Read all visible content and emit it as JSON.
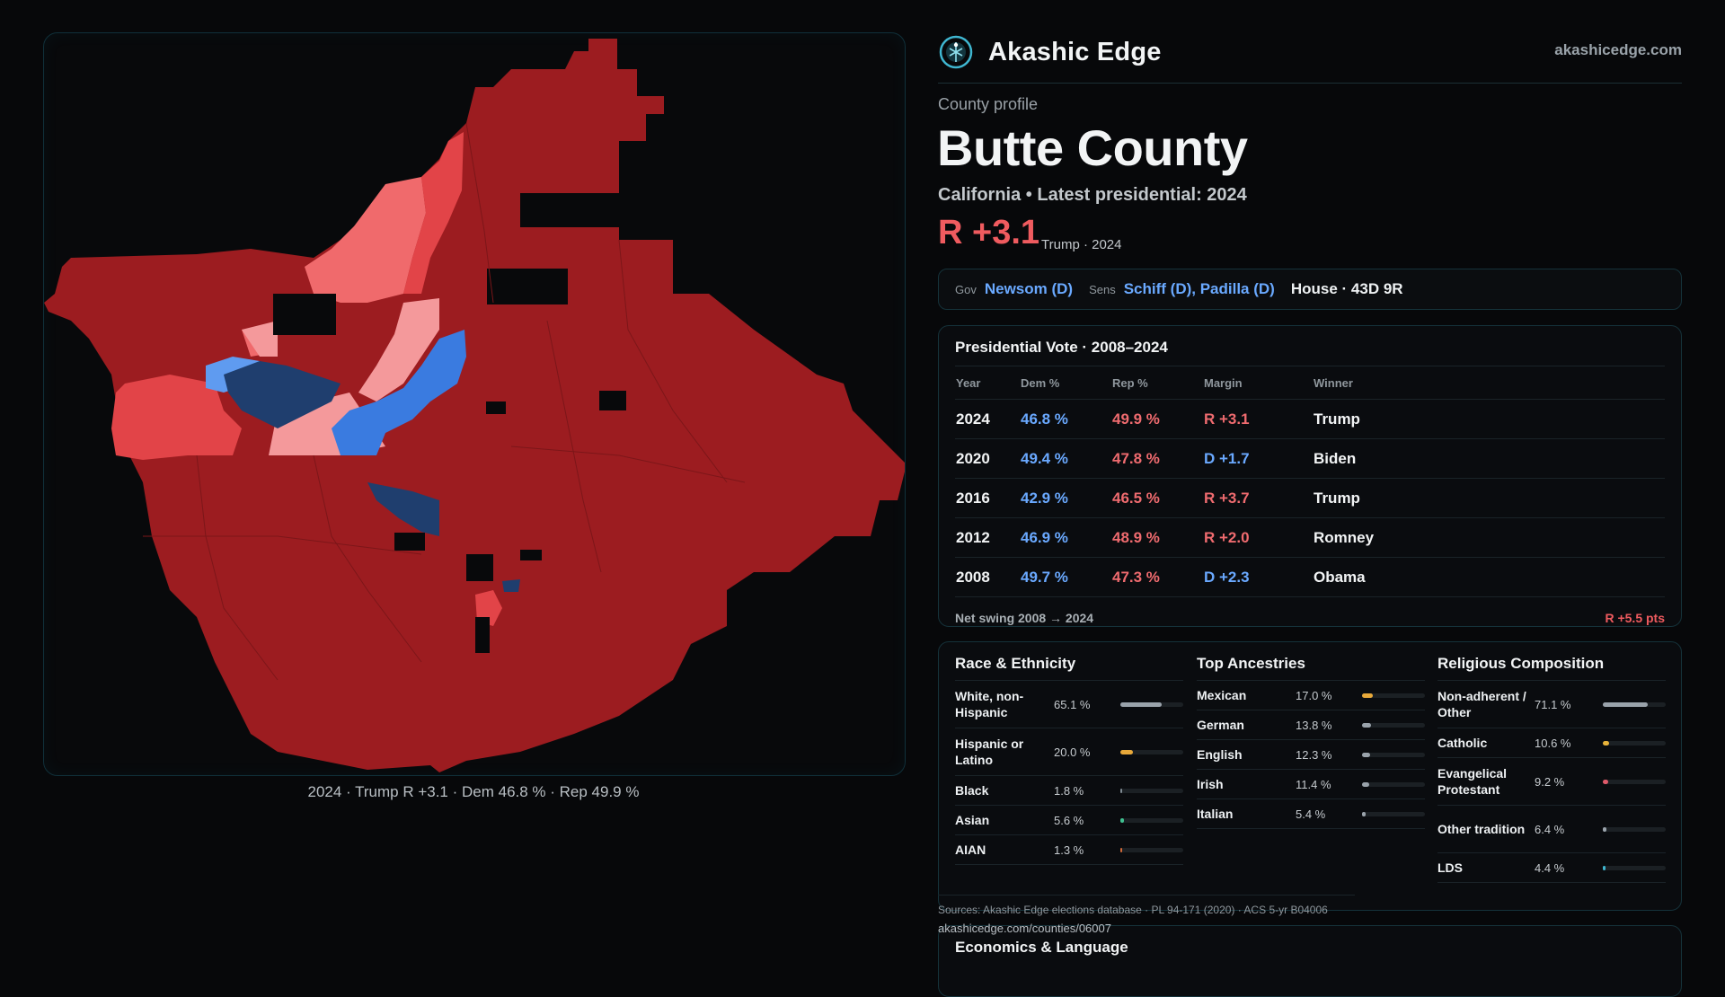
{
  "brand": {
    "name": "Akashic Edge",
    "site": "akashicedge.com",
    "logo_icon": "akashic-edge-logo-icon"
  },
  "profile": {
    "eyebrow": "County profile",
    "title": "Butte County",
    "subtitle": "California • Latest presidential: 2024",
    "margin": "R +3.1",
    "margin_note": "Trump · 2024"
  },
  "officials": {
    "gov_label": "Gov",
    "gov": "Newsom (D)",
    "sens_label": "Sens",
    "sens": "Schiff (D), Padilla (D)",
    "house": "House · 43D 9R"
  },
  "presidential": {
    "title": "Presidential Vote · 2008–2024",
    "headers": [
      "Year",
      "Dem %",
      "Rep %",
      "Margin",
      "Winner"
    ],
    "rows": [
      {
        "year": "2024",
        "dem": "46.8 %",
        "rep": "49.9 %",
        "margin": "R +3.1",
        "winner": "Trump"
      },
      {
        "year": "2020",
        "dem": "49.4 %",
        "rep": "47.8 %",
        "margin": "D +1.7",
        "winner": "Biden"
      },
      {
        "year": "2016",
        "dem": "42.9 %",
        "rep": "46.5 %",
        "margin": "R +3.7",
        "winner": "Trump"
      },
      {
        "year": "2012",
        "dem": "46.9 %",
        "rep": "48.9 %",
        "margin": "R +2.0",
        "winner": "Romney"
      },
      {
        "year": "2008",
        "dem": "49.7 %",
        "rep": "47.3 %",
        "margin": "D +2.3",
        "winner": "Obama"
      }
    ],
    "swing_label": "Net swing 2008 → 2024",
    "swing_value": "R +5.5 pts"
  },
  "race": {
    "title": "Race & Ethnicity",
    "color": "#9aa3ab",
    "rows": [
      {
        "label": "White, non-Hispanic",
        "pct": "65.1 %",
        "share": 0.651,
        "color": "#9aa3ab"
      },
      {
        "label": "Hispanic or Latino",
        "pct": "20.0 %",
        "share": 0.2,
        "color": "#e8a93a"
      },
      {
        "label": "Black",
        "pct": "1.8 %",
        "share": 0.018,
        "color": "#7f8a92"
      },
      {
        "label": "Asian",
        "pct": "5.6 %",
        "share": 0.056,
        "color": "#3fbf8f"
      },
      {
        "label": "AIAN",
        "pct": "1.3 %",
        "share": 0.013,
        "color": "#d06a3a"
      }
    ]
  },
  "ancestry": {
    "title": "Top Ancestries",
    "rows": [
      {
        "label": "Mexican",
        "pct": "17.0 %",
        "share": 0.17,
        "color": "#e8a93a"
      },
      {
        "label": "German",
        "pct": "13.8 %",
        "share": 0.138,
        "color": "#9aa3ab"
      },
      {
        "label": "English",
        "pct": "12.3 %",
        "share": 0.123,
        "color": "#9aa3ab"
      },
      {
        "label": "Irish",
        "pct": "11.4 %",
        "share": 0.114,
        "color": "#9aa3ab"
      },
      {
        "label": "Italian",
        "pct": "5.4 %",
        "share": 0.054,
        "color": "#9aa3ab"
      }
    ]
  },
  "religion": {
    "title": "Religious Composition",
    "rows": [
      {
        "label": "Non-adherent / Other",
        "pct": "71.1 %",
        "share": 0.711,
        "color": "#9aa3ab"
      },
      {
        "label": "Catholic",
        "pct": "10.6 %",
        "share": 0.106,
        "color": "#e8b33a"
      },
      {
        "label": "Evangelical Protestant",
        "pct": "9.2 %",
        "share": 0.092,
        "color": "#e05a6a"
      },
      {
        "label": "Other tradition",
        "pct": "6.4 %",
        "share": 0.064,
        "color": "#9aa3ab"
      },
      {
        "label": "LDS",
        "pct": "4.4 %",
        "share": 0.044,
        "color": "#3fb6d0"
      }
    ]
  },
  "sources": "Sources: Akashic Edge elections database · PL 94-171 (2020) · ACS 5-yr B04006",
  "permalink": "akashicedge.com/counties/06007",
  "economics_title": "Economics & Language",
  "map": {
    "caption": "2024 · Trump R +3.1 · Dem 46.8 % · Rep 49.9 %",
    "colors": {
      "strong_r": "#9c1c20",
      "lean_r": "#e24448",
      "tilt_r": "#f06a6c",
      "weak_r": "#f4999b",
      "strong_d": "#1f3e6e",
      "lean_d": "#3a7be0",
      "tilt_d": "#5f9bf0",
      "no_data": "#08090b"
    }
  }
}
